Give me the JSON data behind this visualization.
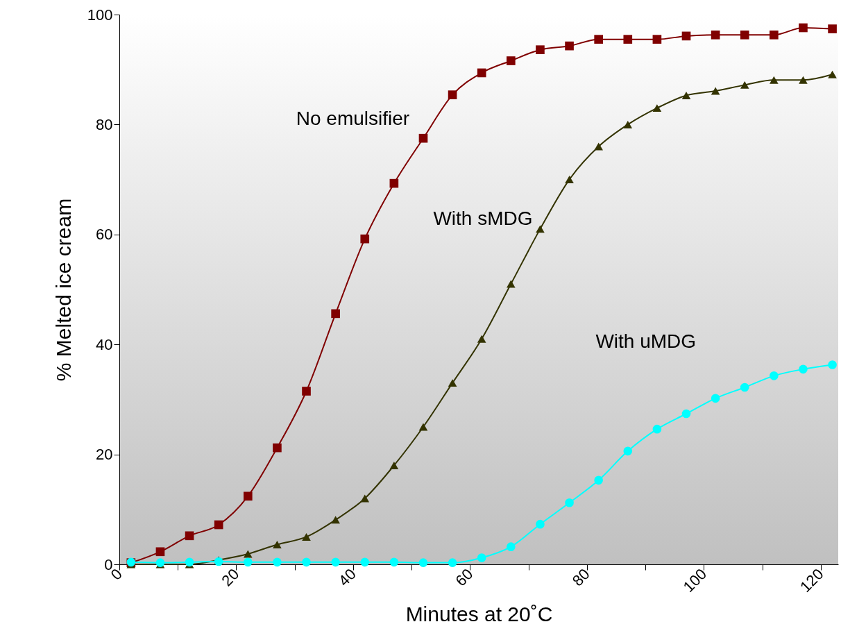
{
  "chart_data": {
    "type": "line",
    "xlabel": "Minutes at 20˚C",
    "ylabel": "% Melted ice cream",
    "x": [
      2,
      7,
      12,
      17,
      22,
      27,
      32,
      37,
      42,
      47,
      52,
      57,
      62,
      67,
      72,
      77,
      82,
      87,
      92,
      97,
      102,
      107,
      112,
      117,
      122
    ],
    "xlim": [
      0,
      123
    ],
    "xticks": [
      0,
      {
        "value": 10,
        "label": null
      },
      20,
      {
        "value": 30,
        "label": null
      },
      40,
      {
        "value": 50,
        "label": null
      },
      60,
      {
        "value": 70,
        "label": null
      },
      80,
      {
        "value": 90,
        "label": null
      },
      100,
      {
        "value": 110,
        "label": null
      },
      120
    ],
    "ylim": [
      0,
      100
    ],
    "yticks": [
      0,
      20,
      40,
      60,
      80,
      100
    ],
    "grid": false,
    "line_style": "solid",
    "series": [
      {
        "name": "No emulsifier",
        "color": "#800000",
        "marker": "square",
        "values": [
          0.3,
          2.3,
          5.2,
          7.2,
          12.4,
          21.2,
          31.5,
          45.6,
          59.2,
          69.3,
          77.5,
          85.4,
          89.4,
          91.6,
          93.6,
          94.3,
          95.5,
          95.5,
          95.5,
          96.1,
          96.3,
          96.3,
          96.3,
          97.6,
          97.4
        ]
      },
      {
        "name": "With sMDG",
        "color": "#333300",
        "marker": "triangle",
        "values": [
          0,
          0,
          0,
          0.8,
          1.9,
          3.6,
          5,
          8.1,
          12,
          18,
          25,
          33,
          41,
          51,
          61,
          70,
          76,
          80,
          83,
          85.3,
          86.1,
          87.2,
          88.1,
          88.1,
          89.1
        ]
      },
      {
        "name": "With uMDG",
        "color": "#00ffff",
        "marker": "circle",
        "values": [
          0.4,
          0.3,
          0.4,
          0.5,
          0.4,
          0.4,
          0.4,
          0.4,
          0.4,
          0.4,
          0.3,
          0.3,
          1.2,
          3.2,
          7.3,
          11.2,
          15.3,
          20.6,
          24.6,
          27.4,
          30.2,
          32.2,
          34.3,
          35.5,
          36.3
        ]
      }
    ]
  }
}
